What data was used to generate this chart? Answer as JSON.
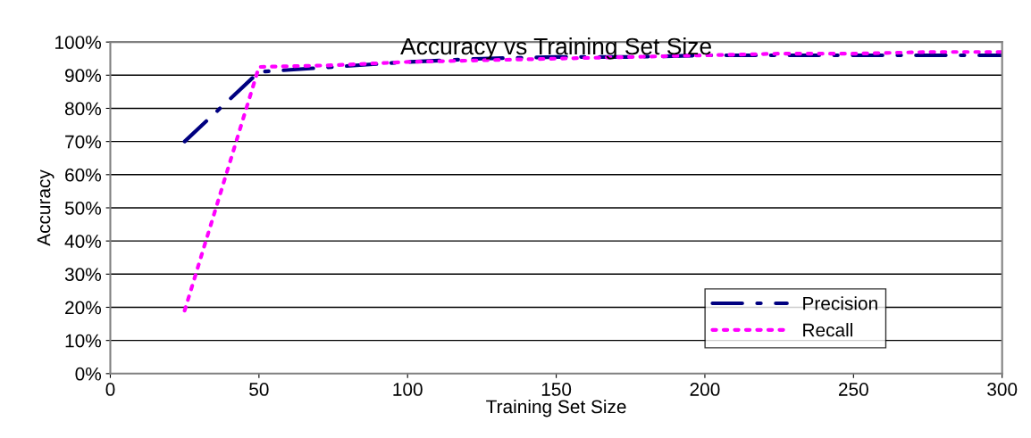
{
  "chart_data": {
    "type": "line",
    "title": "Accuracy vs Training Set Size",
    "xlabel": "Training Set Size",
    "ylabel": "Accuracy",
    "x": [
      25,
      50,
      75,
      100,
      125,
      150,
      175,
      200,
      225,
      250,
      275,
      300
    ],
    "series": [
      {
        "name": "Precision",
        "color": "#000080",
        "line_style": "dashdot",
        "values": [
          70,
          91,
          92.5,
          94,
          95,
          95.5,
          95.5,
          96,
          96,
          96,
          96,
          96
        ]
      },
      {
        "name": "Recall",
        "color": "#ff00ff",
        "line_style": "dotted",
        "values": [
          19,
          92.5,
          93,
          94,
          94.5,
          95,
          95.5,
          96,
          96.5,
          96.5,
          97,
          97
        ]
      }
    ],
    "xlim": [
      0,
      300
    ],
    "xticks": [
      0,
      50,
      100,
      150,
      200,
      250,
      300
    ],
    "ylim": [
      0,
      100
    ],
    "yticks": [
      {
        "value": 0,
        "label": "0%"
      },
      {
        "value": 10,
        "label": "10%"
      },
      {
        "value": 20,
        "label": "20%"
      },
      {
        "value": 30,
        "label": "30%"
      },
      {
        "value": 40,
        "label": "40%"
      },
      {
        "value": 50,
        "label": "50%"
      },
      {
        "value": 60,
        "label": "60%"
      },
      {
        "value": 70,
        "label": "70%"
      },
      {
        "value": 80,
        "label": "80%"
      },
      {
        "value": 90,
        "label": "90%"
      },
      {
        "value": 100,
        "label": "100%"
      }
    ],
    "grid": "y",
    "legend": "bottom right",
    "marker": "none"
  }
}
